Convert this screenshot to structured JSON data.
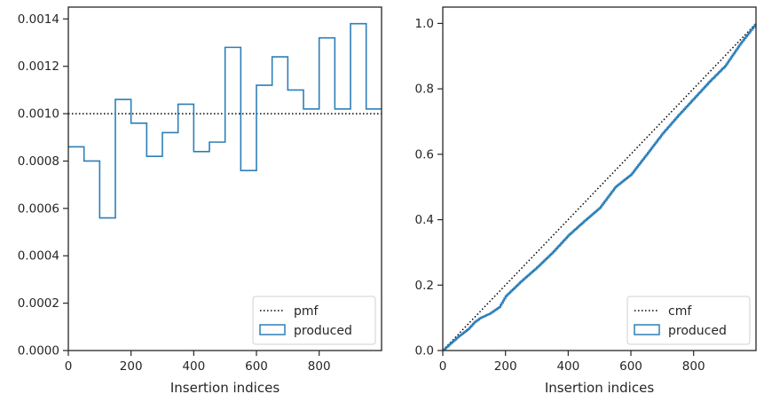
{
  "chart_data": [
    {
      "type": "step",
      "xlabel": "Insertion indices",
      "ylabel": "",
      "xlim": [
        0,
        999
      ],
      "ylim": [
        0,
        0.00145
      ],
      "xticks": [
        0,
        200,
        400,
        600,
        800
      ],
      "yticks": [
        0,
        0.0002,
        0.0004,
        0.0006,
        0.0008,
        0.001,
        0.0012,
        0.0014
      ],
      "ytick_labels": [
        "0.0000",
        "0.0002",
        "0.0004",
        "0.0006",
        "0.0008",
        "0.0010",
        "0.0012",
        "0.0014"
      ],
      "legend_position": "lower-right",
      "colors": {
        "pmf": "#000000",
        "produced": "#2d7fb8"
      },
      "series": [
        {
          "name": "pmf",
          "style": "dotted",
          "x": [
            0,
            999
          ],
          "y": [
            0.001,
            0.001
          ]
        },
        {
          "name": "produced",
          "style": "histogram-step",
          "bin_edges": [
            0,
            50,
            100,
            150,
            200,
            250,
            300,
            350,
            400,
            450,
            500,
            550,
            600,
            650,
            700,
            750,
            800,
            850,
            900,
            950,
            1000
          ],
          "values": [
            0.00086,
            0.0008,
            0.00056,
            0.00106,
            0.00096,
            0.00082,
            0.00092,
            0.00104,
            0.00084,
            0.00088,
            0.00128,
            0.00076,
            0.00112,
            0.00124,
            0.0011,
            0.00102,
            0.00132,
            0.00102,
            0.00138,
            0.00102
          ]
        }
      ]
    },
    {
      "type": "step",
      "xlabel": "Insertion indices",
      "ylabel": "",
      "xlim": [
        0,
        999
      ],
      "ylim": [
        0,
        1.05
      ],
      "xticks": [
        0,
        200,
        400,
        600,
        800
      ],
      "yticks": [
        0,
        0.2,
        0.4,
        0.6,
        0.8,
        1.0
      ],
      "ytick_labels": [
        "0.0",
        "0.2",
        "0.4",
        "0.6",
        "0.8",
        "1.0"
      ],
      "legend_position": "lower-right",
      "colors": {
        "cmf": "#000000",
        "produced": "#2d7fb8"
      },
      "series": [
        {
          "name": "cmf",
          "style": "dotted",
          "x": [
            0,
            999
          ],
          "y": [
            0,
            1.0
          ]
        },
        {
          "name": "produced",
          "style": "step",
          "x": [
            0,
            20,
            50,
            80,
            100,
            120,
            150,
            180,
            200,
            250,
            300,
            350,
            400,
            450,
            500,
            550,
            600,
            650,
            700,
            750,
            800,
            850,
            900,
            950,
            999
          ],
          "y": [
            0,
            0.018,
            0.043,
            0.065,
            0.086,
            0.1,
            0.113,
            0.133,
            0.166,
            0.212,
            0.254,
            0.3,
            0.352,
            0.395,
            0.436,
            0.5,
            0.538,
            0.6,
            0.663,
            0.718,
            0.77,
            0.822,
            0.87,
            0.94,
            1.0
          ]
        }
      ]
    }
  ]
}
